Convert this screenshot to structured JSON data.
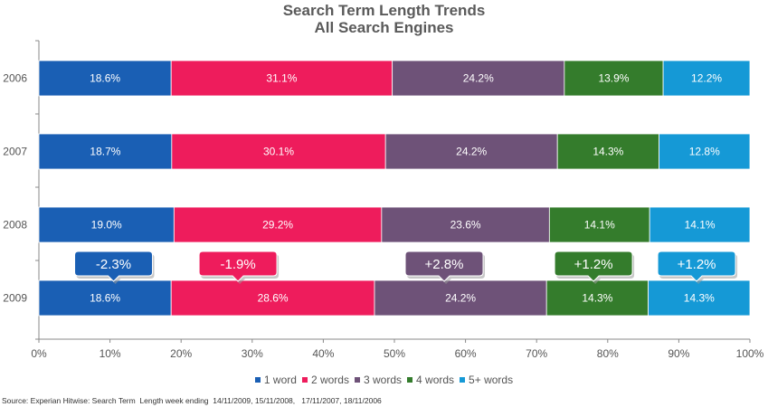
{
  "chart_data": {
    "type": "bar",
    "orientation": "horizontal",
    "stacked": true,
    "title": "Search Term Length Trends",
    "subtitle": "All Search Engines",
    "categories": [
      "2006",
      "2007",
      "2008",
      "2009"
    ],
    "series": [
      {
        "name": "1 word",
        "color": "#1a5fb4",
        "values": [
          18.6,
          18.7,
          19.0,
          18.6
        ],
        "labels": [
          "18.6%",
          "18.7%",
          "19.0%",
          "18.6%"
        ]
      },
      {
        "name": "2 words",
        "color": "#ee1c5c",
        "values": [
          31.1,
          30.1,
          29.2,
          28.6
        ],
        "labels": [
          "31.1%",
          "30.1%",
          "29.2%",
          "28.6%"
        ]
      },
      {
        "name": "3 words",
        "color": "#6e5278",
        "values": [
          24.2,
          24.2,
          23.6,
          24.2
        ],
        "labels": [
          "24.2%",
          "24.2%",
          "23.6%",
          "24.2%"
        ]
      },
      {
        "name": "4 words",
        "color": "#347c2c",
        "values": [
          13.9,
          14.3,
          14.1,
          14.3
        ],
        "labels": [
          "13.9%",
          "14.3%",
          "14.1%",
          "14.3%"
        ]
      },
      {
        "name": "5+ words",
        "color": "#1599d6",
        "values": [
          12.2,
          12.8,
          14.1,
          14.3
        ],
        "labels": [
          "12.2%",
          "12.8%",
          "14.1%",
          "14.3%"
        ]
      }
    ],
    "xlim": [
      0,
      100
    ],
    "xticks": [
      "0%",
      "10%",
      "20%",
      "30%",
      "40%",
      "50%",
      "60%",
      "70%",
      "80%",
      "90%",
      "100%"
    ],
    "grid": false,
    "legend_position": "bottom",
    "annotations": [
      {
        "text": "-2.3%",
        "series": "1 word",
        "category": "2009",
        "x": 10.5
      },
      {
        "text": "-1.9%",
        "series": "2 words",
        "category": "2009",
        "x": 28.0
      },
      {
        "text": "+2.8%",
        "series": "3 words",
        "category": "2009",
        "x": 57.0
      },
      {
        "text": "+1.2%",
        "series": "4 words",
        "category": "2009",
        "x": 78.0
      },
      {
        "text": "+1.2%",
        "series": "5+ words",
        "category": "2009",
        "x": 92.5
      }
    ]
  },
  "source": "Source: Experian Hitwise: Search Term  Length week ending  14/11/2009, 15/11/2008,   17/11/2007, 18/11/2006"
}
